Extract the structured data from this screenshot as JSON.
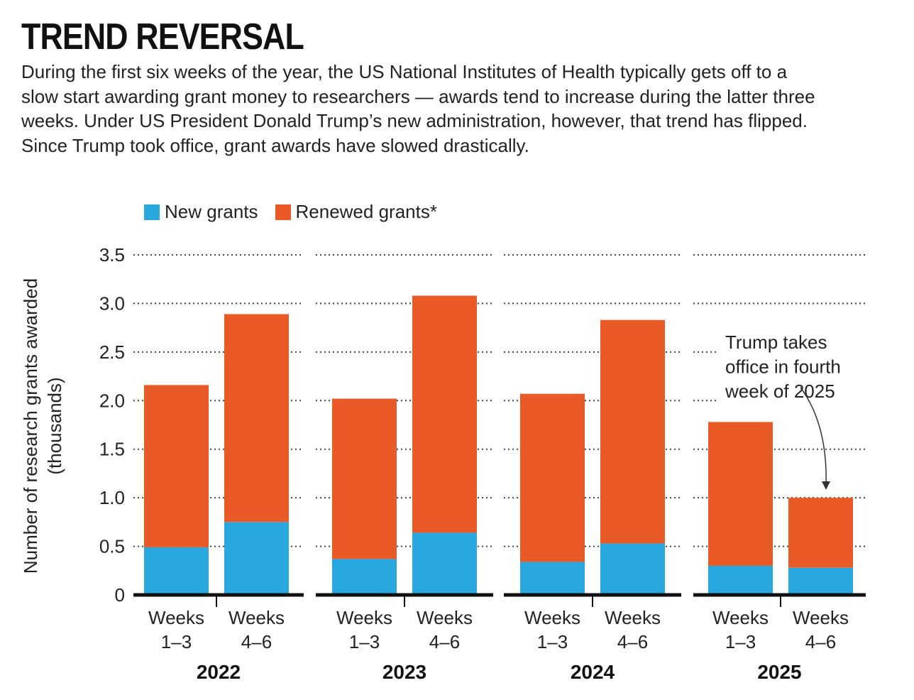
{
  "title": "TREND REVERSAL",
  "subtitle": "During the first six weeks of the year, the US National Institutes of Health typically gets off to a slow start awarding grant money to researchers — awards tend to increase during the latter three weeks. Under US President Donald Trump’s new administration, however, that trend has flipped. Since Trump took office, grant awards have slowed drastically.",
  "legend": {
    "new_label": "New grants",
    "renewed_label": "Renewed grants*"
  },
  "colors": {
    "new": "#29a8e0",
    "renewed": "#ea5a26",
    "axis": "#111111",
    "grid": "#444444"
  },
  "chart_data": {
    "type": "bar",
    "stacked": true,
    "ylabel": "Number of research grants awarded (thousands)",
    "ylim": [
      0,
      3.5
    ],
    "yticks": [
      "0",
      "0.5",
      "1.0",
      "1.5",
      "2.0",
      "2.5",
      "3.0",
      "3.5"
    ],
    "grid": "dotted horizontal",
    "legend_position": "top-left",
    "groups": [
      {
        "year": "2022",
        "bars": [
          {
            "label": [
              "Weeks",
              "1–3"
            ],
            "new": 0.49,
            "renewed": 1.67
          },
          {
            "label": [
              "Weeks",
              "4–6"
            ],
            "new": 0.75,
            "renewed": 2.14
          }
        ]
      },
      {
        "year": "2023",
        "bars": [
          {
            "label": [
              "Weeks",
              "1–3"
            ],
            "new": 0.37,
            "renewed": 1.65
          },
          {
            "label": [
              "Weeks",
              "4–6"
            ],
            "new": 0.64,
            "renewed": 2.44
          }
        ]
      },
      {
        "year": "2024",
        "bars": [
          {
            "label": [
              "Weeks",
              "1–3"
            ],
            "new": 0.34,
            "renewed": 1.73
          },
          {
            "label": [
              "Weeks",
              "4–6"
            ],
            "new": 0.53,
            "renewed": 2.3
          }
        ]
      },
      {
        "year": "2025",
        "bars": [
          {
            "label": [
              "Weeks",
              "1–3"
            ],
            "new": 0.3,
            "renewed": 1.48
          },
          {
            "label": [
              "Weeks",
              "4–6"
            ],
            "new": 0.28,
            "renewed": 0.72
          }
        ]
      }
    ],
    "series": [
      {
        "name": "New grants",
        "values": [
          0.49,
          0.75,
          0.37,
          0.64,
          0.34,
          0.53,
          0.3,
          0.28
        ]
      },
      {
        "name": "Renewed grants*",
        "values": [
          1.67,
          2.14,
          1.65,
          2.44,
          1.73,
          2.3,
          1.48,
          0.72
        ]
      }
    ],
    "annotation": {
      "lines": [
        "Trump takes",
        "office in fourth",
        "week of 2025"
      ]
    }
  }
}
